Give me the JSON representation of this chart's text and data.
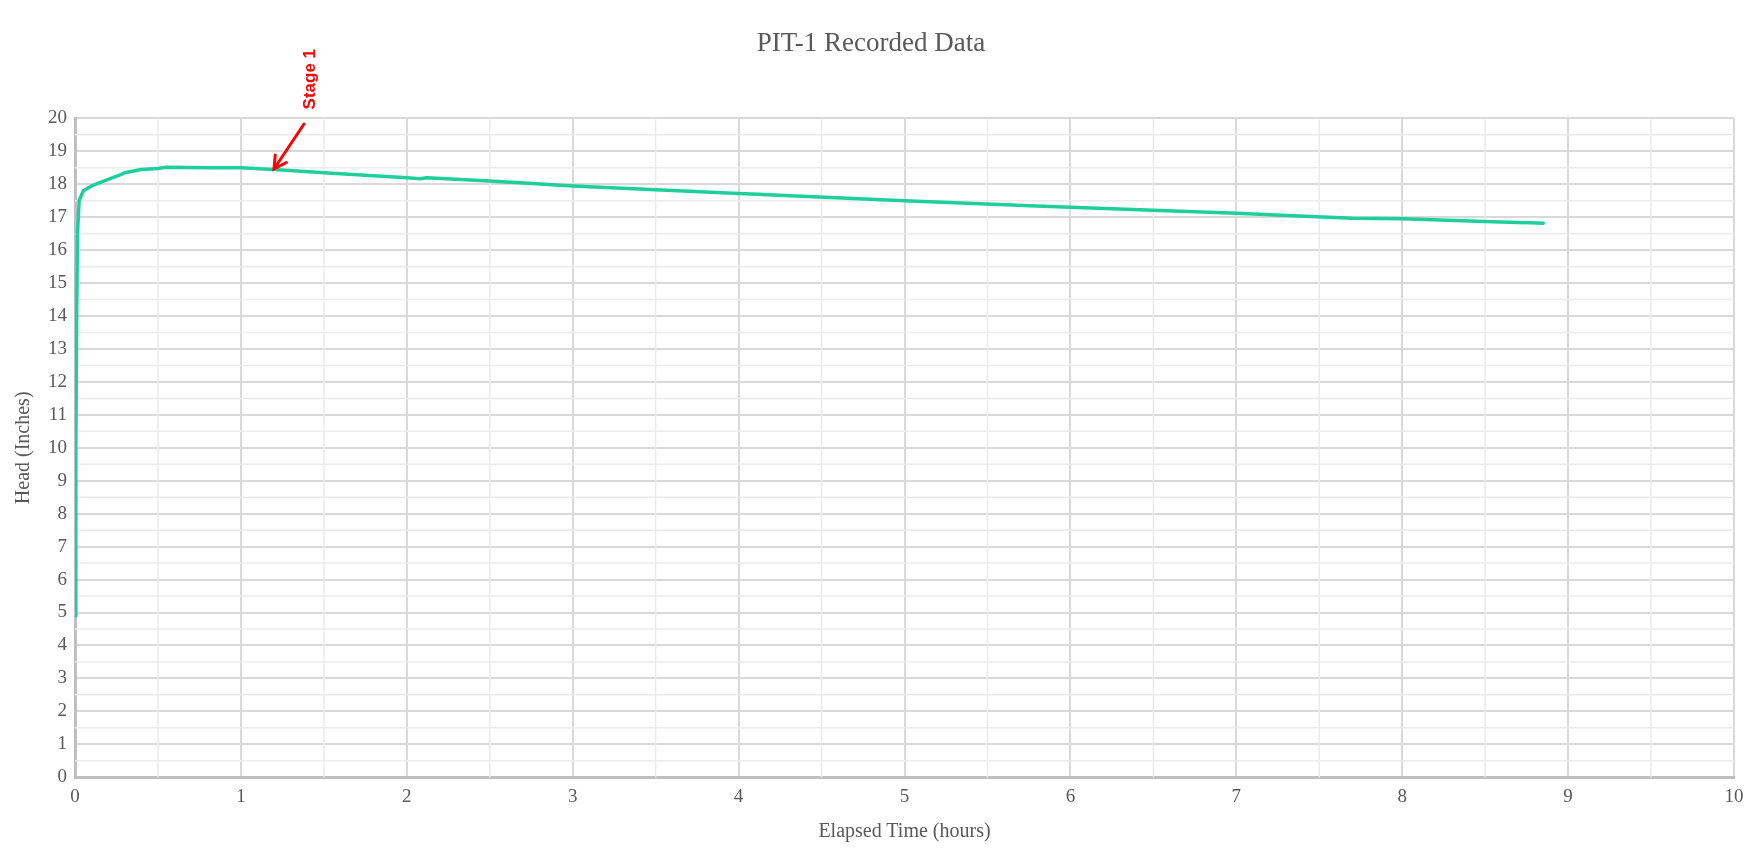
{
  "chart_data": {
    "type": "line",
    "title": "PIT-1 Recorded Data",
    "xlabel": "Elapsed Time (hours)",
    "ylabel": "Head (Inches)",
    "xlim": [
      0,
      10
    ],
    "xticks": [
      0,
      1,
      2,
      3,
      4,
      5,
      6,
      7,
      8,
      9,
      10
    ],
    "ylim": [
      0,
      20
    ],
    "yticks": [
      0,
      1,
      2,
      3,
      4,
      5,
      6,
      7,
      8,
      9,
      10,
      11,
      12,
      13,
      14,
      15,
      16,
      17,
      18,
      19,
      20
    ],
    "grid": true,
    "legend": false,
    "marker": "none",
    "line_style": "solid",
    "annotations": [
      {
        "text": "Stage 1",
        "x": 1.2,
        "y": 18.45
      }
    ],
    "series": [
      {
        "color": "#1ecf9b",
        "x": [
          0,
          0.005,
          0.01,
          0.015,
          0.025,
          0.05,
          0.1,
          0.2,
          0.28,
          0.3,
          0.4,
          0.5,
          0.55,
          0.8,
          1,
          1.2,
          1.5,
          2,
          2.08,
          2.12,
          2.5,
          3,
          4,
          5,
          6,
          7,
          7.7,
          8,
          8.5,
          8.85
        ],
        "values": [
          4.9,
          10,
          14,
          16.5,
          17.5,
          17.8,
          17.95,
          18.15,
          18.3,
          18.35,
          18.45,
          18.48,
          18.52,
          18.5,
          18.5,
          18.45,
          18.35,
          18.2,
          18.17,
          18.2,
          18.1,
          17.95,
          17.72,
          17.5,
          17.3,
          17.12,
          16.97,
          16.95,
          16.87,
          16.82
        ]
      }
    ]
  }
}
